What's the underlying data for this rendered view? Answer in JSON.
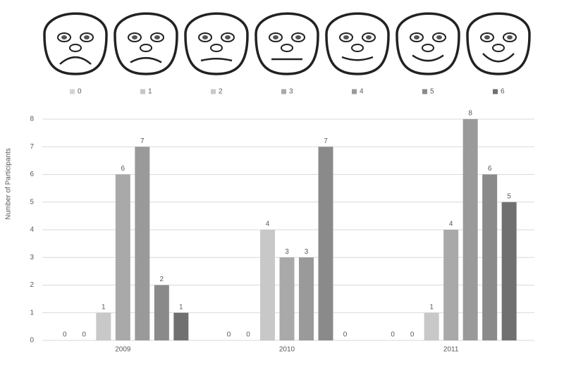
{
  "chart_data": {
    "type": "bar",
    "y_label": "Number of Participants",
    "categories": [
      "2009",
      "2010",
      "2011"
    ],
    "series": [
      {
        "name": "0",
        "color": "#d4d4d4",
        "values": [
          0,
          0,
          0
        ]
      },
      {
        "name": "1",
        "color": "#c6c6c6",
        "values": [
          0,
          0,
          0
        ]
      },
      {
        "name": "2",
        "color": "#c8c8c8",
        "values": [
          1,
          4,
          1
        ]
      },
      {
        "name": "3",
        "color": "#a9a9a9",
        "values": [
          6,
          3,
          4
        ]
      },
      {
        "name": "4",
        "color": "#9a9a9a",
        "values": [
          7,
          3,
          8
        ]
      },
      {
        "name": "5",
        "color": "#8a8a8a",
        "values": [
          2,
          7,
          6
        ]
      },
      {
        "name": "6",
        "color": "#707070",
        "values": [
          1,
          0,
          5
        ]
      }
    ],
    "ylim": [
      0,
      8
    ],
    "yticks": [
      0,
      1,
      2,
      3,
      4,
      5,
      6,
      7,
      8
    ],
    "grid": true,
    "legend": "top"
  }
}
